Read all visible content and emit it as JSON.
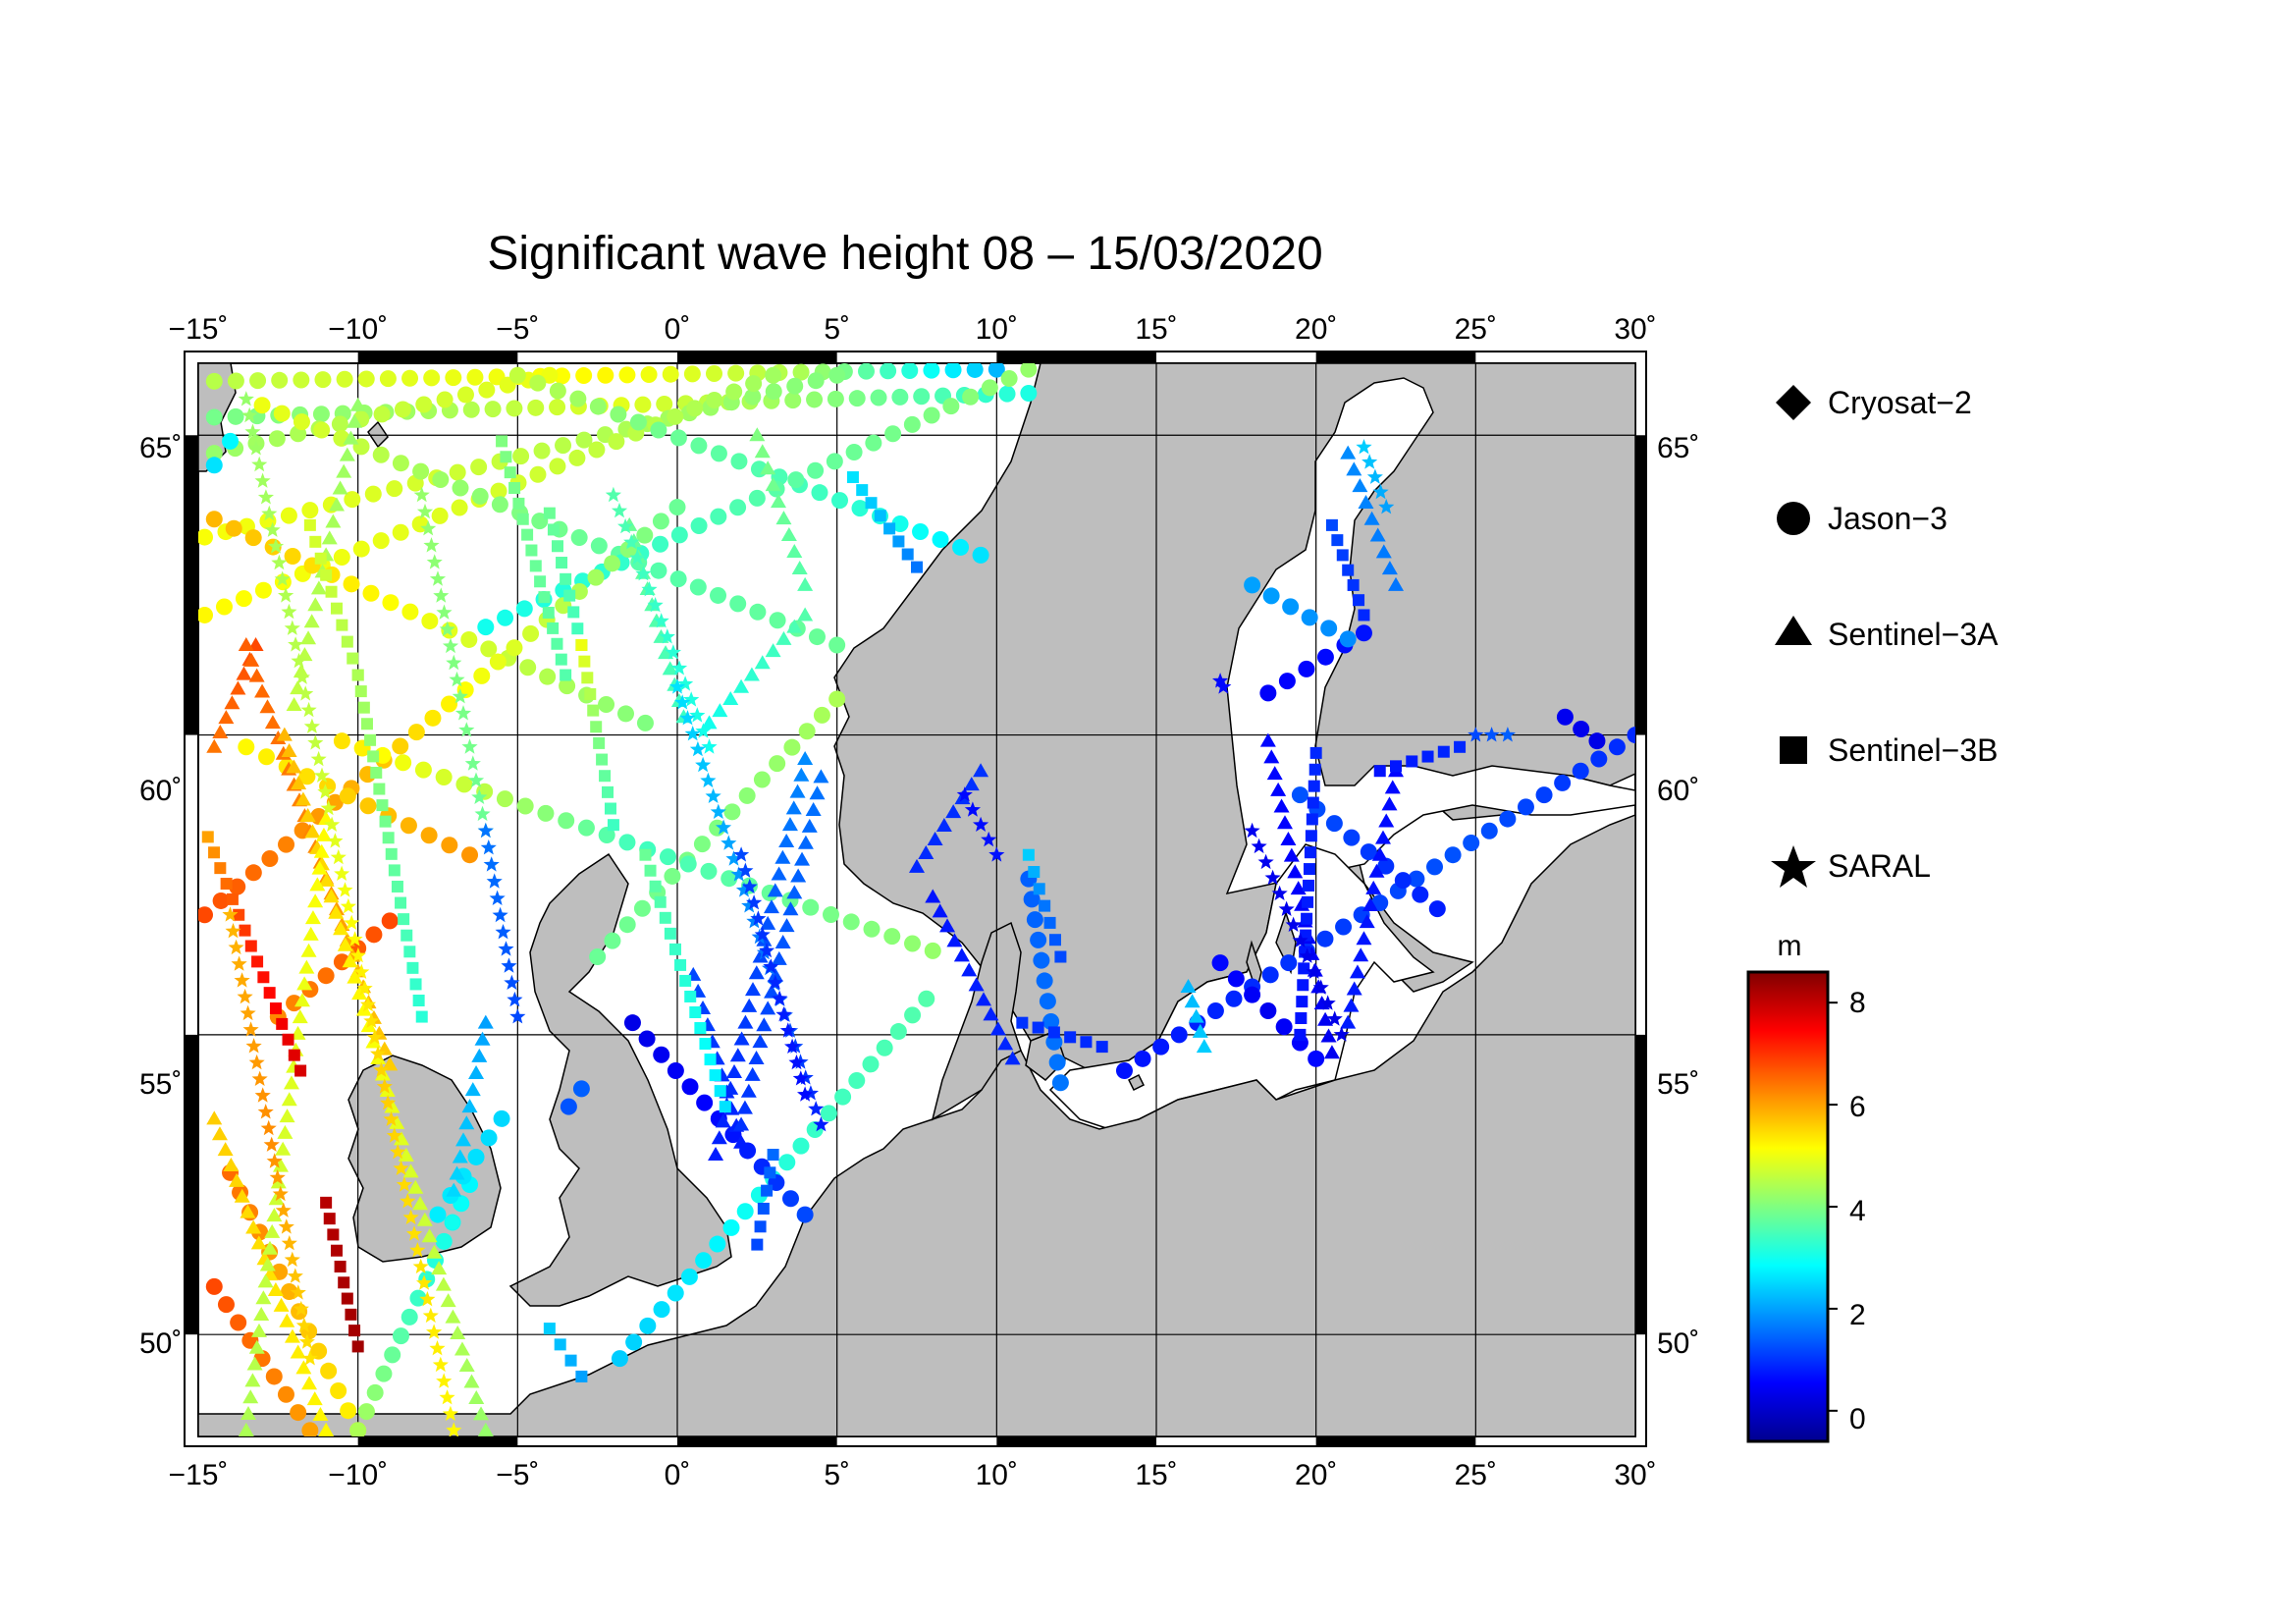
{
  "title": "Significant wave height 08 – 15/03/2020",
  "map": {
    "lon_ticks": [
      "−15˚",
      "−10˚",
      "−5˚",
      "0˚",
      "5˚",
      "10˚",
      "15˚",
      "20˚",
      "25˚",
      "30˚"
    ],
    "lat_ticks": [
      "65˚",
      "60˚",
      "55˚",
      "50˚"
    ],
    "lon_range": [
      -15,
      30
    ],
    "lat_range": [
      48.3,
      66.2
    ],
    "land_color": "#bebebe",
    "sea_color": "#ffffff"
  },
  "legend": {
    "items": [
      {
        "label": "Cryosat−2",
        "icon": "diamond-icon"
      },
      {
        "label": "Jason−3",
        "icon": "circle-icon"
      },
      {
        "label": "Sentinel−3A",
        "icon": "triangle-icon"
      },
      {
        "label": "Sentinel−3B",
        "icon": "square-icon"
      },
      {
        "label": "SARAL",
        "icon": "star-icon"
      }
    ]
  },
  "colorbar": {
    "unit": "m",
    "ticks": [
      "8",
      "6",
      "4",
      "2",
      "0"
    ],
    "range": [
      -0.6,
      8.6
    ],
    "colors": [
      "#00008f",
      "#0000ff",
      "#0080ff",
      "#00ffff",
      "#80ff80",
      "#ffff00",
      "#ff8000",
      "#ff0000",
      "#800000"
    ]
  },
  "tracks": [
    {
      "sat": "Jason−3",
      "from": [
        -14.5,
        65.9
      ],
      "to": [
        10,
        66.1
      ],
      "h": [
        4.5,
        4.9,
        5.2,
        4.4,
        2.2
      ]
    },
    {
      "sat": "Jason−3",
      "from": [
        -14.5,
        65.3
      ],
      "to": [
        11,
        65.7
      ],
      "h": [
        3.9,
        4.3,
        4.9,
        4.1,
        3.1
      ]
    },
    {
      "sat": "Jason−3",
      "from": [
        -14.5,
        64.7
      ],
      "to": [
        -4,
        66.0
      ],
      "h": [
        4.2,
        4.6,
        5.0
      ]
    },
    {
      "sat": "Jason−3",
      "from": [
        -14.8,
        63.3
      ],
      "to": [
        5,
        66.0
      ],
      "h": [
        5.1,
        4.6,
        4.0
      ]
    },
    {
      "sat": "Jason−3",
      "from": [
        -14.8,
        62.0
      ],
      "to": [
        3,
        66.0
      ],
      "h": [
        5.2,
        4.8,
        4.3
      ]
    },
    {
      "sat": "Jason−3",
      "from": [
        -14.5,
        63.6
      ],
      "to": [
        -1,
        60.2
      ],
      "h": [
        5.8,
        5.0,
        4.0
      ]
    },
    {
      "sat": "Jason−3",
      "from": [
        -13,
        65.5
      ],
      "to": [
        5,
        61.5
      ],
      "h": [
        5.0,
        4.2,
        3.6,
        3.8
      ]
    },
    {
      "sat": "Jason−3",
      "from": [
        -5,
        66.0
      ],
      "to": [
        9.5,
        63.0
      ],
      "h": [
        4.6,
        3.8,
        3.4,
        2.6
      ]
    },
    {
      "sat": "Jason−3",
      "from": [
        -6,
        61.8
      ],
      "to": [
        11,
        66.1
      ],
      "h": [
        3.0,
        3.4,
        3.8,
        4.2
      ]
    },
    {
      "sat": "Jason−3",
      "from": [
        -14.8,
        57.0
      ],
      "to": [
        0,
        63.8
      ],
      "h": [
        6.8,
        5.8,
        4.8,
        3.8
      ]
    },
    {
      "sat": "Jason−3",
      "from": [
        -13.5,
        59.8
      ],
      "to": [
        -6.5,
        58.0
      ],
      "h": [
        5.2,
        5.6,
        6.1
      ]
    },
    {
      "sat": "Jason−3",
      "from": [
        -12.5,
        55.3
      ],
      "to": [
        -9,
        56.9
      ],
      "h": [
        6.2,
        6.5,
        6.8
      ]
    },
    {
      "sat": "Jason−3",
      "from": [
        -2.5,
        56.3
      ],
      "to": [
        5,
        60.6
      ],
      "h": [
        3.8,
        4.0,
        4.4
      ]
    },
    {
      "sat": "Jason−3",
      "from": [
        -10.5,
        59.9
      ],
      "to": [
        8,
        56.4
      ],
      "h": [
        5.4,
        4.5,
        3.4,
        3.8,
        4.2
      ]
    },
    {
      "sat": "Jason−3",
      "from": [
        -1.8,
        49.6
      ],
      "to": [
        7.8,
        55.6
      ],
      "h": [
        2.4,
        2.8,
        3.4,
        3.6
      ]
    },
    {
      "sat": "Jason−3",
      "from": [
        -3.4,
        53.8
      ],
      "to": [
        -3.0,
        54.1
      ],
      "h": [
        1.3,
        1.4
      ]
    },
    {
      "sat": "Jason−3",
      "from": [
        -1.4,
        55.2
      ],
      "to": [
        4,
        52.0
      ],
      "h": [
        0.3,
        0.6,
        1.2
      ]
    },
    {
      "sat": "Jason−3",
      "from": [
        -14.5,
        50.8
      ],
      "to": [
        -11.5,
        48.4
      ],
      "h": [
        6.8,
        6.0
      ]
    },
    {
      "sat": "Jason−3",
      "from": [
        -14.0,
        52.7
      ],
      "to": [
        -10.0,
        48.4
      ],
      "h": [
        6.5,
        5.8,
        5.2
      ]
    },
    {
      "sat": "Jason−3",
      "from": [
        -10.0,
        48.4
      ],
      "to": [
        -6.5,
        52.5
      ],
      "h": [
        4.4,
        3.4,
        2.8
      ]
    },
    {
      "sat": "Jason−3",
      "from": [
        -7.5,
        52.0
      ],
      "to": [
        -5.5,
        53.6
      ],
      "h": [
        2.7,
        2.5
      ]
    },
    {
      "sat": "Jason−3",
      "from": [
        11,
        57.6
      ],
      "to": [
        12.0,
        54.2
      ],
      "h": [
        1.4,
        1.6
      ]
    },
    {
      "sat": "Jason−3",
      "from": [
        14.0,
        54.4
      ],
      "to": [
        30.0,
        60.0
      ],
      "h": [
        0.7,
        1.0,
        1.3,
        0.9
      ]
    },
    {
      "sat": "Jason−3",
      "from": [
        17.0,
        56.2
      ],
      "to": [
        20.0,
        54.6
      ],
      "h": [
        0.6,
        0.4,
        0.6
      ]
    },
    {
      "sat": "Jason−3",
      "from": [
        18.5,
        60.7
      ],
      "to": [
        21.5,
        61.7
      ],
      "h": [
        0.5,
        0.7
      ]
    },
    {
      "sat": "Jason−3",
      "from": [
        18.0,
        62.5
      ],
      "to": [
        21.0,
        61.6
      ],
      "h": [
        2.0,
        1.8
      ]
    },
    {
      "sat": "Jason−3",
      "from": [
        19.5,
        59.0
      ],
      "to": [
        23.8,
        57.1
      ],
      "h": [
        1.3,
        0.8
      ]
    },
    {
      "sat": "Jason−3",
      "from": [
        27.8,
        60.3
      ],
      "to": [
        28.8,
        59.9
      ],
      "h": [
        0.4,
        0.3
      ]
    },
    {
      "sat": "Jason−3",
      "from": [
        -14.5,
        64.5
      ],
      "to": [
        -14.0,
        64.9
      ],
      "h": [
        2.6,
        2.8
      ]
    },
    {
      "sat": "Sentinel−3A",
      "from": [
        -14.5,
        59.8
      ],
      "to": [
        -13.2,
        61.5
      ],
      "h": [
        6.4,
        6.8
      ]
    },
    {
      "sat": "Sentinel−3A",
      "from": [
        -13.5,
        61.5
      ],
      "to": [
        -9,
        54.5
      ],
      "h": [
        6.6,
        6.2,
        5.6
      ]
    },
    {
      "sat": "Sentinel−3A",
      "from": [
        -12.3,
        60.0
      ],
      "to": [
        -6.0,
        48.4
      ],
      "h": [
        5.8,
        5.0,
        4.2
      ]
    },
    {
      "sat": "Sentinel−3A",
      "from": [
        -14.5,
        53.6
      ],
      "to": [
        -11.0,
        48.4
      ],
      "h": [
        5.6,
        5.2
      ]
    },
    {
      "sat": "Sentinel−3A",
      "from": [
        -11.0,
        58.6
      ],
      "to": [
        -13.5,
        48.4
      ],
      "h": [
        5.2,
        4.8,
        4.4
      ]
    },
    {
      "sat": "Sentinel−3A",
      "from": [
        -10,
        65.5
      ],
      "to": [
        -12,
        60.5
      ],
      "h": [
        4.2,
        4.6
      ]
    },
    {
      "sat": "Sentinel−3A",
      "from": [
        -1.5,
        63.5
      ],
      "to": [
        0.2,
        60.3
      ],
      "h": [
        3.8,
        3.4
      ]
    },
    {
      "sat": "Sentinel−3A",
      "from": [
        2.5,
        65.0
      ],
      "to": [
        4.0,
        62.5
      ],
      "h": [
        4.0,
        3.6
      ]
    },
    {
      "sat": "Sentinel−3A",
      "from": [
        4.0,
        62.0
      ],
      "to": [
        1.0,
        60.2
      ],
      "h": [
        3.6,
        3.0
      ]
    },
    {
      "sat": "Sentinel−3A",
      "from": [
        0.5,
        56.0
      ],
      "to": [
        2.0,
        53.2
      ],
      "h": [
        1.2,
        0.8
      ]
    },
    {
      "sat": "Sentinel−3A",
      "from": [
        4.0,
        59.6
      ],
      "to": [
        1.2,
        53.0
      ],
      "h": [
        1.8,
        1.2,
        0.8
      ]
    },
    {
      "sat": "Sentinel−3A",
      "from": [
        4.5,
        59.3
      ],
      "to": [
        2.0,
        53.5
      ],
      "h": [
        1.6,
        1.0
      ]
    },
    {
      "sat": "Sentinel−3A",
      "from": [
        7.5,
        57.8
      ],
      "to": [
        9.5,
        59.4
      ],
      "h": [
        0.9,
        1.0
      ]
    },
    {
      "sat": "Sentinel−3A",
      "from": [
        8.0,
        57.3
      ],
      "to": [
        10.5,
        54.6
      ],
      "h": [
        0.7,
        0.9
      ]
    },
    {
      "sat": "Sentinel−3A",
      "from": [
        18.5,
        59.9
      ],
      "to": [
        20.5,
        54.7
      ],
      "h": [
        0.6,
        0.4
      ]
    },
    {
      "sat": "Sentinel−3A",
      "from": [
        22.5,
        59.4
      ],
      "to": [
        21.0,
        55.2
      ],
      "h": [
        0.6,
        0.8
      ]
    },
    {
      "sat": "Sentinel−3A",
      "from": [
        21.0,
        64.7
      ],
      "to": [
        22.5,
        62.5
      ],
      "h": [
        1.8,
        1.6
      ]
    },
    {
      "sat": "Sentinel−3A",
      "from": [
        -7.0,
        52.4
      ],
      "to": [
        -6.0,
        55.2
      ],
      "h": [
        2.5,
        2.0
      ]
    },
    {
      "sat": "Sentinel−3A",
      "from": [
        16.0,
        55.8
      ],
      "to": [
        16.5,
        54.8
      ],
      "h": [
        2.2,
        2.4
      ]
    },
    {
      "sat": "Sentinel−3B",
      "from": [
        -14.7,
        58.3
      ],
      "to": [
        -11.8,
        54.4
      ],
      "h": [
        6.0,
        7.2,
        7.8
      ]
    },
    {
      "sat": "Sentinel−3B",
      "from": [
        -11.0,
        52.2
      ],
      "to": [
        -10.0,
        49.8
      ],
      "h": [
        8.1,
        8.3
      ]
    },
    {
      "sat": "Sentinel−3B",
      "from": [
        -11.5,
        63.5
      ],
      "to": [
        -10.0,
        61.0
      ],
      "h": [
        4.8,
        4.4
      ]
    },
    {
      "sat": "Sentinel−3B",
      "from": [
        -10.0,
        61.0
      ],
      "to": [
        -8.0,
        55.3
      ],
      "h": [
        4.4,
        3.8,
        3.2
      ]
    },
    {
      "sat": "Sentinel−3B",
      "from": [
        -4.0,
        63.7
      ],
      "to": [
        -3.0,
        61.5
      ],
      "h": [
        3.8,
        3.4
      ]
    },
    {
      "sat": "Sentinel−3B",
      "from": [
        -3.0,
        61.5
      ],
      "to": [
        -2.0,
        58.5
      ],
      "h": [
        5.0,
        4.0,
        3.4
      ]
    },
    {
      "sat": "Sentinel−3B",
      "from": [
        -5.5,
        64.9
      ],
      "to": [
        -3.5,
        61.0
      ],
      "h": [
        4.0,
        3.6
      ]
    },
    {
      "sat": "Sentinel−3B",
      "from": [
        -1.0,
        58.0
      ],
      "to": [
        1.5,
        53.8
      ],
      "h": [
        3.8,
        3.2,
        2.6
      ]
    },
    {
      "sat": "Sentinel−3B",
      "from": [
        3.0,
        53.0
      ],
      "to": [
        2.5,
        51.5
      ],
      "h": [
        1.5,
        1.2
      ]
    },
    {
      "sat": "Sentinel−3B",
      "from": [
        5.5,
        64.3
      ],
      "to": [
        7.5,
        62.8
      ],
      "h": [
        2.6,
        2.2,
        1.6
      ]
    },
    {
      "sat": "Sentinel−3B",
      "from": [
        11.0,
        58.0
      ],
      "to": [
        12.0,
        56.3
      ],
      "h": [
        2.4,
        1.6,
        1.2
      ]
    },
    {
      "sat": "Sentinel−3B",
      "from": [
        10.8,
        55.2
      ],
      "to": [
        13.3,
        54.8
      ],
      "h": [
        1.0,
        0.9
      ]
    },
    {
      "sat": "Sentinel−3B",
      "from": [
        20.5,
        63.5
      ],
      "to": [
        21.5,
        62.0
      ],
      "h": [
        1.2,
        0.9
      ]
    },
    {
      "sat": "Sentinel−3B",
      "from": [
        20.0,
        59.7
      ],
      "to": [
        19.5,
        55.0
      ],
      "h": [
        0.9,
        0.7
      ]
    },
    {
      "sat": "Sentinel−3B",
      "from": [
        22.0,
        59.4
      ],
      "to": [
        24.5,
        59.8
      ],
      "h": [
        0.7,
        0.9
      ]
    },
    {
      "sat": "Sentinel−3B",
      "from": [
        -4.0,
        50.1
      ],
      "to": [
        -3.0,
        49.3
      ],
      "h": [
        2.4,
        2.0
      ]
    },
    {
      "sat": "SARAL",
      "from": [
        -13.5,
        65.6
      ],
      "to": [
        -7.0,
        48.4
      ],
      "h": [
        4.2,
        4.6,
        5.6,
        5.2
      ]
    },
    {
      "sat": "SARAL",
      "from": [
        -14.0,
        57.0
      ],
      "to": [
        -11.5,
        49.6
      ],
      "h": [
        5.8,
        6.2,
        5.4
      ]
    },
    {
      "sat": "SARAL",
      "from": [
        -8.0,
        64.0
      ],
      "to": [
        -6.0,
        58.4
      ],
      "h": [
        4.2,
        3.8
      ]
    },
    {
      "sat": "SARAL",
      "from": [
        -6.0,
        58.4
      ],
      "to": [
        -5.0,
        55.3
      ],
      "h": [
        1.6,
        1.2
      ]
    },
    {
      "sat": "SARAL",
      "from": [
        -2.0,
        64.0
      ],
      "to": [
        1.0,
        59.8
      ],
      "h": [
        3.6,
        3.0
      ]
    },
    {
      "sat": "SARAL",
      "from": [
        0.0,
        60.8
      ],
      "to": [
        4.5,
        53.5
      ],
      "h": [
        2.6,
        1.8,
        0.8
      ]
    },
    {
      "sat": "SARAL",
      "from": [
        2.0,
        58.0
      ],
      "to": [
        4.0,
        54.0
      ],
      "h": [
        1.2,
        0.6
      ]
    },
    {
      "sat": "SARAL",
      "from": [
        9.0,
        59.0
      ],
      "to": [
        10.0,
        58.0
      ],
      "h": [
        0.6,
        0.7
      ]
    },
    {
      "sat": "SARAL",
      "from": [
        18.0,
        58.4
      ],
      "to": [
        20.8,
        55.0
      ],
      "h": [
        0.4,
        0.3
      ]
    },
    {
      "sat": "SARAL",
      "from": [
        21.5,
        64.8
      ],
      "to": [
        22.2,
        63.8
      ],
      "h": [
        2.4,
        2.0
      ]
    },
    {
      "sat": "SARAL",
      "from": [
        25.0,
        60.0
      ],
      "to": [
        26.0,
        60.0
      ],
      "h": [
        1.2,
        1.4
      ]
    },
    {
      "sat": "SARAL",
      "from": [
        17.0,
        60.9
      ],
      "to": [
        17.1,
        60.8
      ],
      "h": [
        0.6,
        0.6
      ]
    }
  ]
}
